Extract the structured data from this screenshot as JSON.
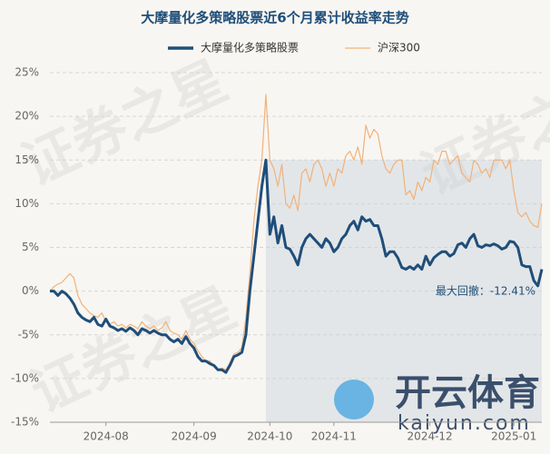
{
  "chart_data": {
    "type": "line",
    "title": "大摩量化多策略股票近6个月累计收益率走势",
    "watermark": "证券之星",
    "logo_text": "开云体育",
    "logo_url": "kaiyun.com",
    "annotation": "最大回撤：-12.41%",
    "categories": [
      null,
      null,
      null,
      null,
      null,
      null,
      null,
      null,
      null,
      null,
      null,
      null,
      null,
      null,
      "2024-08",
      null,
      null,
      null,
      null,
      null,
      null,
      null,
      null,
      null,
      null,
      null,
      null,
      null,
      null,
      null,
      null,
      null,
      null,
      null,
      null,
      null,
      "2024-09",
      null,
      null,
      null,
      null,
      null,
      null,
      null,
      null,
      null,
      null,
      null,
      null,
      null,
      null,
      null,
      null,
      null,
      null,
      "2024-10",
      null,
      null,
      null,
      null,
      null,
      null,
      null,
      null,
      null,
      null,
      null,
      null,
      null,
      null,
      null,
      "2024-11",
      null,
      null,
      null,
      null,
      null,
      null,
      null,
      null,
      null,
      null,
      null,
      null,
      null,
      null,
      null,
      null,
      null,
      null,
      null,
      null,
      null,
      null,
      null,
      "2024-12",
      null,
      null,
      null,
      null,
      null,
      null,
      null,
      null,
      null,
      null,
      null,
      null,
      null,
      null,
      null,
      null,
      null,
      null,
      null,
      null,
      "2025-01",
      null,
      null,
      null,
      null,
      null,
      null,
      null
    ],
    "series": [
      {
        "name": "大摩量化多策略股票",
        "color": "#1f4e7a",
        "values": [
          0,
          0,
          -0.5,
          0,
          -0.3,
          -0.8,
          -1.5,
          -2.5,
          -3,
          -3.3,
          -3.5,
          -3,
          -3.8,
          -4,
          -3.2,
          -4,
          -4.2,
          -4.5,
          -4.3,
          -4.6,
          -4.2,
          -4.5,
          -5,
          -4.3,
          -4.5,
          -4.8,
          -4.5,
          -4.8,
          -5,
          -5,
          -5.5,
          -5.8,
          -5.5,
          -6,
          -5.2,
          -6,
          -6.5,
          -7.5,
          -8,
          -8,
          -8.3,
          -8.5,
          -9,
          -9,
          -9.3,
          -8.5,
          -7.5,
          -7.3,
          -7,
          -5,
          0,
          4,
          8,
          12,
          15,
          6.5,
          8.5,
          5.5,
          7.5,
          5,
          4.8,
          4,
          3,
          5,
          6,
          6.5,
          6,
          5.5,
          5,
          6,
          5.5,
          4.5,
          5,
          6,
          6.5,
          7.5,
          8,
          7,
          8.5,
          8,
          8.2,
          7.5,
          7.5,
          6,
          4,
          4.5,
          4.5,
          3.8,
          2.7,
          2.5,
          2.8,
          2.5,
          3,
          2.5,
          4,
          3,
          3.8,
          4.2,
          4.5,
          4.5,
          4,
          4.3,
          5.3,
          5.5,
          5,
          6,
          6.5,
          5.2,
          5,
          5.3,
          5.2,
          5.4,
          5.2,
          4.8,
          5,
          5.7,
          5.6,
          5,
          3,
          2.8,
          2.8,
          1.2,
          0.6,
          2.5
        ]
      },
      {
        "name": "沪深300",
        "color": "#f0b27a",
        "values": [
          0,
          0.5,
          0.8,
          1,
          1.5,
          2,
          1.5,
          -0.5,
          -1.5,
          -2,
          -2.5,
          -2.8,
          -3,
          -2.5,
          -3.5,
          -3.8,
          -3.5,
          -4,
          -3.8,
          -4.2,
          -3.8,
          -4,
          -4.3,
          -3.5,
          -4,
          -4.3,
          -4,
          -4.5,
          -4.2,
          -3.5,
          -4.5,
          -4.8,
          -5,
          -5.5,
          -4.5,
          -5.5,
          -6,
          -6.8,
          -7.5,
          -8,
          -8,
          -8.5,
          -9,
          -8.8,
          -9,
          -8.2,
          -7.2,
          -7,
          -6.5,
          -3,
          2,
          8,
          12,
          15,
          22.5,
          15,
          14,
          12,
          14.5,
          10,
          9.5,
          11,
          9.2,
          13.5,
          14,
          12.5,
          14.5,
          15,
          14,
          12,
          13.5,
          12,
          14,
          13.5,
          15.5,
          16,
          15,
          16.5,
          14.5,
          19,
          17.5,
          18.5,
          18,
          15.5,
          14,
          13.5,
          14.5,
          15,
          15,
          11,
          11.5,
          10.5,
          12.5,
          11.5,
          13,
          12.5,
          15,
          14.5,
          16,
          16,
          14.5,
          15,
          15.5,
          13.5,
          13,
          12.5,
          15,
          14.5,
          13.5,
          14,
          13,
          15,
          15,
          15,
          14,
          15,
          11.5,
          9,
          8.5,
          9,
          8,
          7.5,
          7.3,
          10
        ]
      }
    ],
    "ylim": [
      -15,
      25
    ],
    "yticks": [
      {
        "value": -15,
        "label": "-15%"
      },
      {
        "value": -10,
        "label": "-10%"
      },
      {
        "value": -5,
        "label": "-5%"
      },
      {
        "value": 0,
        "label": "0%"
      },
      {
        "value": 5,
        "label": "5%"
      },
      {
        "value": 10,
        "label": "10%"
      },
      {
        "value": 15,
        "label": "15%"
      },
      {
        "value": 20,
        "label": "20%"
      },
      {
        "value": 25,
        "label": "25%"
      }
    ],
    "grid": true,
    "legend": "top"
  }
}
